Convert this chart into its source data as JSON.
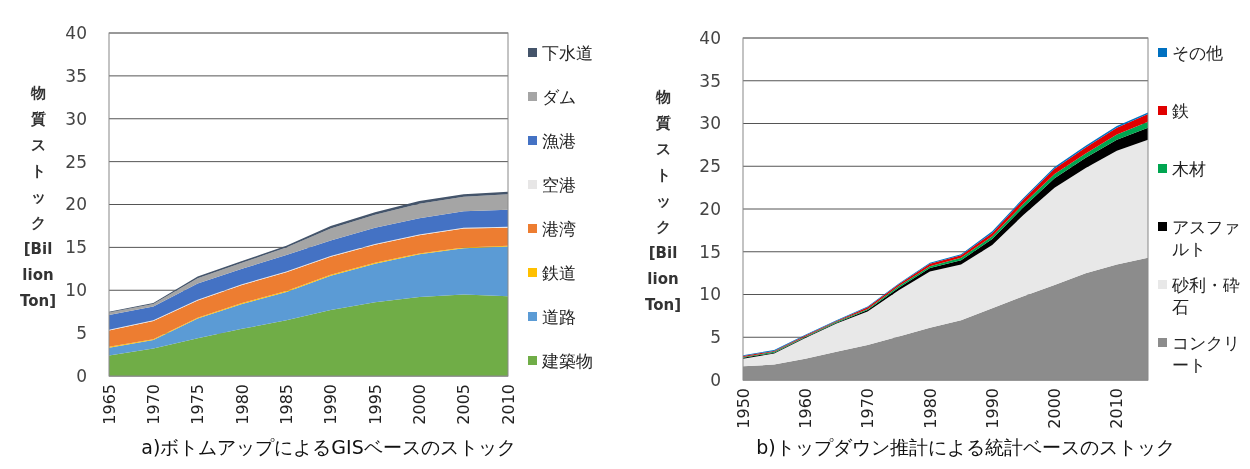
{
  "chart_data": [
    {
      "type": "area",
      "stacked": true,
      "title": "a)ボトムアップによるGISベースのストック",
      "ylabel": "物質ストック[Billion Ton]",
      "x": [
        1965,
        1970,
        1975,
        1980,
        1985,
        1990,
        1995,
        2000,
        2005,
        2010
      ],
      "xlim": [
        1965,
        2010
      ],
      "xticks": [
        1965,
        1970,
        1975,
        1980,
        1985,
        1990,
        1995,
        2000,
        2005,
        2010
      ],
      "ylim": [
        0,
        40
      ],
      "yticks": [
        0,
        5,
        10,
        15,
        20,
        25,
        30,
        35,
        40
      ],
      "grid": "y",
      "legend": "right",
      "series": [
        {
          "name": "建築物",
          "color": "#70ad47",
          "values": [
            2.4,
            3.2,
            4.4,
            5.5,
            6.5,
            7.7,
            8.6,
            9.2,
            9.5,
            9.3
          ]
        },
        {
          "name": "道路",
          "color": "#5b9bd5",
          "values": [
            0.9,
            1.0,
            2.3,
            2.9,
            3.3,
            4.0,
            4.5,
            5.0,
            5.4,
            5.8
          ]
        },
        {
          "name": "鉄道",
          "color": "#ffc000",
          "values": [
            0.1,
            0.1,
            0.1,
            0.1,
            0.1,
            0.1,
            0.1,
            0.1,
            0.1,
            0.1
          ]
        },
        {
          "name": "港湾",
          "color": "#ed7d31",
          "values": [
            1.9,
            2.1,
            2.0,
            2.1,
            2.2,
            2.1,
            2.1,
            2.1,
            2.2,
            2.1
          ]
        },
        {
          "name": "空港",
          "color": "#e7e6e6",
          "values": [
            0.1,
            0.1,
            0.1,
            0.1,
            0.1,
            0.1,
            0.1,
            0.1,
            0.1,
            0.1
          ]
        },
        {
          "name": "漁港",
          "color": "#4472c4",
          "values": [
            1.7,
            1.6,
            1.9,
            1.8,
            1.9,
            1.8,
            1.9,
            1.9,
            1.9,
            2.0
          ]
        },
        {
          "name": "ダム",
          "color": "#a5a5a5",
          "values": [
            0.3,
            0.3,
            0.6,
            0.7,
            0.9,
            1.4,
            1.5,
            1.7,
            1.7,
            1.8
          ]
        },
        {
          "name": "下水道",
          "color": "#44546a",
          "values": [
            0.1,
            0.1,
            0.2,
            0.2,
            0.2,
            0.3,
            0.3,
            0.3,
            0.3,
            0.3
          ]
        }
      ]
    },
    {
      "type": "area",
      "stacked": true,
      "title": "b)トップダウン推計による統計ベースのストック",
      "ylabel": "物質ストック[Billion Ton]",
      "x": [
        1950,
        1955,
        1960,
        1965,
        1970,
        1975,
        1980,
        1985,
        1990,
        1995,
        2000,
        2005,
        2010,
        2015
      ],
      "xlim": [
        1950,
        2015
      ],
      "xticks": [
        1950,
        1960,
        1970,
        1980,
        1990,
        2000,
        2010
      ],
      "ylim": [
        0,
        40
      ],
      "yticks": [
        0,
        5,
        10,
        15,
        20,
        25,
        30,
        35,
        40
      ],
      "grid": "y",
      "legend": "right",
      "series": [
        {
          "name": "コンクリート",
          "color": "#8c8c8c",
          "values": [
            1.6,
            1.8,
            2.5,
            3.3,
            4.1,
            5.1,
            6.1,
            7.0,
            8.4,
            9.8,
            11.1,
            12.5,
            13.5,
            14.3
          ]
        },
        {
          "name": "砂利・砕石",
          "color": "#e8e8e8",
          "values": [
            0.9,
            1.3,
            2.4,
            3.3,
            3.9,
            5.4,
            6.6,
            6.5,
            7.4,
            9.5,
            11.4,
            12.3,
            13.3,
            13.8
          ]
        },
        {
          "name": "アスファルト",
          "color": "#000000",
          "values": [
            0.1,
            0.1,
            0.1,
            0.1,
            0.2,
            0.3,
            0.4,
            0.5,
            0.7,
            0.9,
            1.1,
            1.2,
            1.3,
            1.4
          ]
        },
        {
          "name": "木材",
          "color": "#00a550",
          "values": [
            0.1,
            0.1,
            0.1,
            0.1,
            0.1,
            0.2,
            0.2,
            0.3,
            0.3,
            0.4,
            0.5,
            0.5,
            0.6,
            0.7
          ]
        },
        {
          "name": "鉄",
          "color": "#e00000",
          "values": [
            0.1,
            0.1,
            0.1,
            0.1,
            0.2,
            0.2,
            0.3,
            0.3,
            0.4,
            0.5,
            0.6,
            0.7,
            0.8,
            0.9
          ]
        },
        {
          "name": "その他",
          "color": "#0070c0",
          "values": [
            0.1,
            0.1,
            0.1,
            0.1,
            0.1,
            0.1,
            0.1,
            0.1,
            0.2,
            0.2,
            0.2,
            0.2,
            0.2,
            0.2
          ]
        }
      ]
    }
  ]
}
